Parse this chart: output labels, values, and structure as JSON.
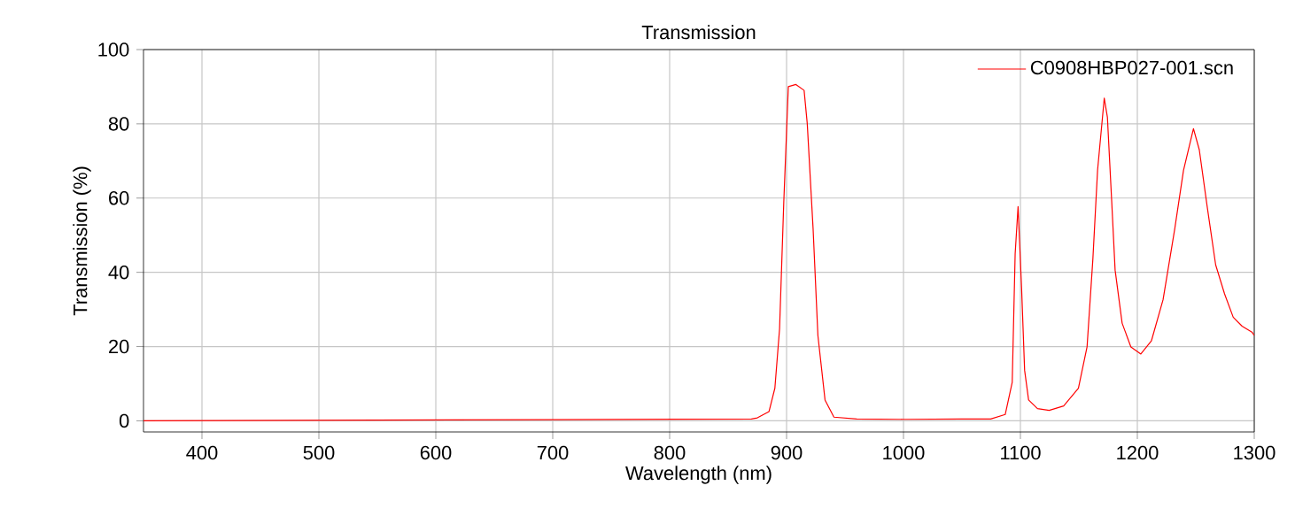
{
  "chart_data": {
    "type": "line",
    "title": "Transmission",
    "xlabel": "Wavelength (nm)",
    "ylabel": "Transmission (%)",
    "xlim": [
      350,
      1300
    ],
    "ylim": [
      -3,
      100
    ],
    "xticks": [
      400,
      500,
      600,
      700,
      800,
      900,
      1000,
      1100,
      1200,
      1300
    ],
    "yticks": [
      0,
      20,
      40,
      60,
      80,
      100
    ],
    "grid": true,
    "legend": "top right",
    "marker": "none",
    "line_style": "solid",
    "series": [
      {
        "name": "C0908HBP027-001.scn",
        "color": "#ff0000",
        "x": [
          350,
          700,
          870,
          875,
          885,
          890,
          894,
          897.6,
          901.5,
          908,
          915,
          917.7,
          922.7,
          926.8,
          932.9,
          940.5,
          960,
          1000,
          1050,
          1074.6,
          1087,
          1093,
          1095.5,
          1098,
          1101,
          1103.6,
          1107,
          1114.6,
          1124.6,
          1137,
          1149.6,
          1157,
          1162,
          1166,
          1171.7,
          1174.4,
          1178,
          1181,
          1187,
          1194.5,
          1203,
          1212,
          1222,
          1232,
          1239.5,
          1248,
          1253,
          1259.6,
          1267,
          1274.6,
          1282,
          1289.6,
          1298,
          1300
        ],
        "values": [
          0,
          0.3,
          0.5,
          0.8,
          2.5,
          8.8,
          24.7,
          58.8,
          90,
          90.6,
          89,
          80,
          51.7,
          23,
          5.6,
          1,
          0.5,
          0.4,
          0.5,
          0.5,
          1.7,
          10.4,
          45,
          57.7,
          35.8,
          13.6,
          5.6,
          3.3,
          2.8,
          4,
          8.8,
          19.9,
          43.7,
          67.5,
          86.9,
          81.8,
          59.6,
          40.6,
          26.3,
          19.9,
          18,
          21.5,
          32.6,
          51.7,
          67.5,
          78.7,
          73,
          58,
          42,
          34.2,
          27.9,
          25.5,
          23.9,
          23
        ]
      }
    ]
  }
}
